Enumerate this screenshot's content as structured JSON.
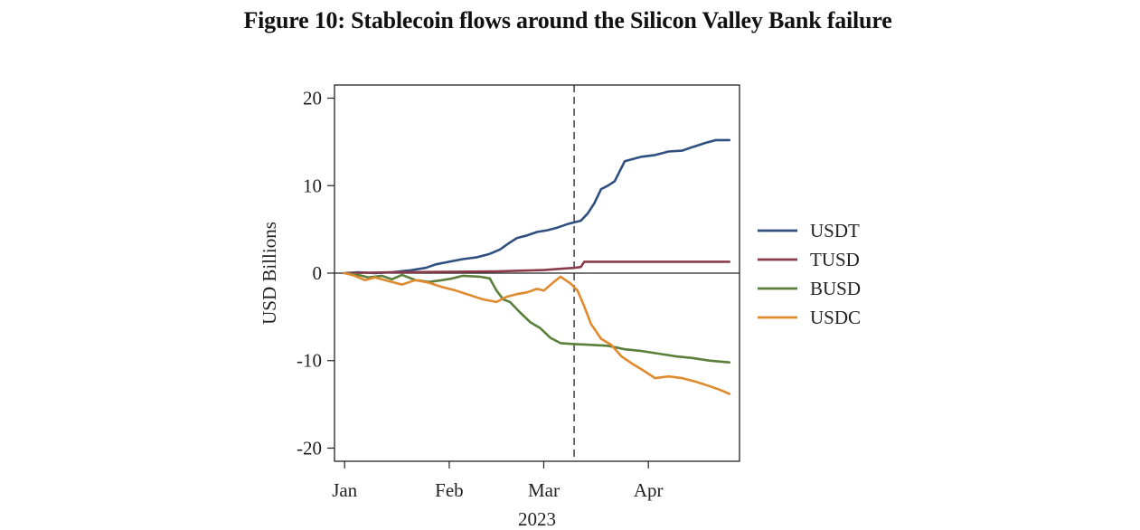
{
  "figure": {
    "title": "Figure 10: Stablecoin flows around the Silicon Valley Bank failure"
  },
  "chart_data": {
    "type": "line",
    "title": "Figure 10: Stablecoin flows around the Silicon Valley Bank failure",
    "xlabel": "2023",
    "ylabel": "USD Billions",
    "x_tick_labels": [
      "Jan",
      "Feb",
      "Mar",
      "Apr"
    ],
    "x_tick_dates": [
      "2023-01-01",
      "2023-02-01",
      "2023-03-01",
      "2023-04-01"
    ],
    "xlim": [
      "2022-12-29",
      "2023-04-28"
    ],
    "y_ticks": [
      20,
      10,
      0,
      -10,
      -20
    ],
    "y_tick_labels": [
      "20",
      "10",
      "0",
      "-10",
      "-20"
    ],
    "ylim": [
      -21.5,
      21.5
    ],
    "zero_line": true,
    "event_line": {
      "date": "2023-03-10",
      "style": "dashed"
    },
    "grid": false,
    "legend_position": "right",
    "series": [
      {
        "name": "USDT",
        "color": "#2f4f7f",
        "points": [
          [
            "2023-01-01",
            0.0
          ],
          [
            "2023-01-05",
            0.1
          ],
          [
            "2023-01-10",
            0.0
          ],
          [
            "2023-01-15",
            0.1
          ],
          [
            "2023-01-20",
            0.3
          ],
          [
            "2023-01-25",
            0.6
          ],
          [
            "2023-01-28",
            1.0
          ],
          [
            "2023-02-01",
            1.3
          ],
          [
            "2023-02-05",
            1.6
          ],
          [
            "2023-02-09",
            1.8
          ],
          [
            "2023-02-13",
            2.2
          ],
          [
            "2023-02-16",
            2.7
          ],
          [
            "2023-02-19",
            3.5
          ],
          [
            "2023-02-21",
            4.0
          ],
          [
            "2023-02-24",
            4.3
          ],
          [
            "2023-02-27",
            4.7
          ],
          [
            "2023-03-02",
            4.9
          ],
          [
            "2023-03-05",
            5.2
          ],
          [
            "2023-03-08",
            5.6
          ],
          [
            "2023-03-10",
            5.8
          ],
          [
            "2023-03-12",
            6.0
          ],
          [
            "2023-03-14",
            6.8
          ],
          [
            "2023-03-16",
            8.0
          ],
          [
            "2023-03-18",
            9.6
          ],
          [
            "2023-03-20",
            10.0
          ],
          [
            "2023-03-22",
            10.5
          ],
          [
            "2023-03-25",
            12.8
          ],
          [
            "2023-03-27",
            13.0
          ],
          [
            "2023-03-30",
            13.3
          ],
          [
            "2023-04-03",
            13.5
          ],
          [
            "2023-04-07",
            13.9
          ],
          [
            "2023-04-11",
            14.0
          ],
          [
            "2023-04-14",
            14.4
          ],
          [
            "2023-04-18",
            14.9
          ],
          [
            "2023-04-21",
            15.2
          ],
          [
            "2023-04-25",
            15.2
          ]
        ]
      },
      {
        "name": "TUSD",
        "color": "#8b3a4a",
        "points": [
          [
            "2023-01-01",
            0.0
          ],
          [
            "2023-01-15",
            0.1
          ],
          [
            "2023-02-01",
            0.15
          ],
          [
            "2023-02-15",
            0.2
          ],
          [
            "2023-03-01",
            0.35
          ],
          [
            "2023-03-06",
            0.5
          ],
          [
            "2023-03-10",
            0.6
          ],
          [
            "2023-03-12",
            0.7
          ],
          [
            "2023-03-13",
            1.3
          ],
          [
            "2023-03-20",
            1.3
          ],
          [
            "2023-04-01",
            1.3
          ],
          [
            "2023-04-15",
            1.3
          ],
          [
            "2023-04-25",
            1.3
          ]
        ]
      },
      {
        "name": "BUSD",
        "color": "#5a7f3a",
        "points": [
          [
            "2023-01-01",
            0.0
          ],
          [
            "2023-01-05",
            -0.2
          ],
          [
            "2023-01-08",
            -0.5
          ],
          [
            "2023-01-12",
            -0.3
          ],
          [
            "2023-01-15",
            -0.7
          ],
          [
            "2023-01-18",
            -0.2
          ],
          [
            "2023-01-22",
            -0.8
          ],
          [
            "2023-01-26",
            -1.0
          ],
          [
            "2023-01-30",
            -0.8
          ],
          [
            "2023-02-02",
            -0.6
          ],
          [
            "2023-02-05",
            -0.3
          ],
          [
            "2023-02-10",
            -0.4
          ],
          [
            "2023-02-13",
            -0.6
          ],
          [
            "2023-02-15",
            -2.0
          ],
          [
            "2023-02-17",
            -3.0
          ],
          [
            "2023-02-19",
            -3.3
          ],
          [
            "2023-02-22",
            -4.5
          ],
          [
            "2023-02-25",
            -5.6
          ],
          [
            "2023-02-28",
            -6.3
          ],
          [
            "2023-03-03",
            -7.4
          ],
          [
            "2023-03-06",
            -8.0
          ],
          [
            "2023-03-10",
            -8.1
          ],
          [
            "2023-03-15",
            -8.2
          ],
          [
            "2023-03-20",
            -8.3
          ],
          [
            "2023-03-25",
            -8.7
          ],
          [
            "2023-03-30",
            -8.9
          ],
          [
            "2023-04-04",
            -9.2
          ],
          [
            "2023-04-09",
            -9.5
          ],
          [
            "2023-04-14",
            -9.7
          ],
          [
            "2023-04-19",
            -10.0
          ],
          [
            "2023-04-25",
            -10.2
          ]
        ]
      },
      {
        "name": "USDC",
        "color": "#e08a2e",
        "points": [
          [
            "2023-01-01",
            0.0
          ],
          [
            "2023-01-04",
            -0.3
          ],
          [
            "2023-01-07",
            -0.8
          ],
          [
            "2023-01-10",
            -0.5
          ],
          [
            "2023-01-14",
            -0.9
          ],
          [
            "2023-01-18",
            -1.3
          ],
          [
            "2023-01-22",
            -0.8
          ],
          [
            "2023-01-26",
            -1.1
          ],
          [
            "2023-01-30",
            -1.6
          ],
          [
            "2023-02-03",
            -2.0
          ],
          [
            "2023-02-07",
            -2.5
          ],
          [
            "2023-02-11",
            -3.0
          ],
          [
            "2023-02-15",
            -3.3
          ],
          [
            "2023-02-18",
            -2.7
          ],
          [
            "2023-02-21",
            -2.4
          ],
          [
            "2023-02-24",
            -2.2
          ],
          [
            "2023-02-27",
            -1.8
          ],
          [
            "2023-03-01",
            -2.0
          ],
          [
            "2023-03-04",
            -1.0
          ],
          [
            "2023-03-06",
            -0.4
          ],
          [
            "2023-03-09",
            -1.2
          ],
          [
            "2023-03-11",
            -2.0
          ],
          [
            "2023-03-13",
            -3.8
          ],
          [
            "2023-03-15",
            -5.8
          ],
          [
            "2023-03-18",
            -7.5
          ],
          [
            "2023-03-21",
            -8.2
          ],
          [
            "2023-03-24",
            -9.5
          ],
          [
            "2023-03-27",
            -10.3
          ],
          [
            "2023-03-30",
            -11.0
          ],
          [
            "2023-04-03",
            -12.0
          ],
          [
            "2023-04-07",
            -11.8
          ],
          [
            "2023-04-11",
            -12.0
          ],
          [
            "2023-04-15",
            -12.4
          ],
          [
            "2023-04-19",
            -12.9
          ],
          [
            "2023-04-22",
            -13.3
          ],
          [
            "2023-04-25",
            -13.8
          ]
        ]
      }
    ]
  }
}
